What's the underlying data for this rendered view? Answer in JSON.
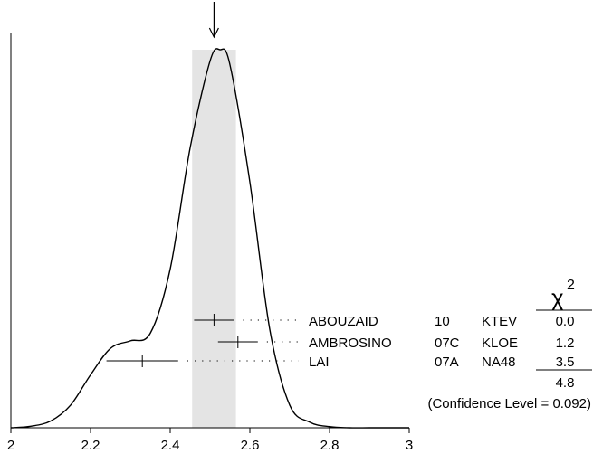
{
  "chart_data": {
    "type": "ideogram",
    "x_axis": {
      "range": [
        2,
        3
      ],
      "ticks": [
        2,
        2.2,
        2.4,
        2.6,
        2.8,
        3
      ],
      "tick_labels": [
        "2",
        "2.2",
        "2.4",
        "2.6",
        "2.8",
        "3"
      ]
    },
    "average": {
      "value": 2.51,
      "error_band": [
        2.455,
        2.565
      ]
    },
    "curve": {
      "x": [
        2.0,
        2.05,
        2.1,
        2.15,
        2.2,
        2.25,
        2.3,
        2.35,
        2.4,
        2.45,
        2.5,
        2.525,
        2.55,
        2.6,
        2.65,
        2.7,
        2.75,
        2.8,
        2.85,
        2.9,
        2.95,
        3.0
      ],
      "y": [
        0.0,
        0.004,
        0.018,
        0.06,
        0.14,
        0.21,
        0.23,
        0.25,
        0.42,
        0.74,
        0.97,
        1.0,
        0.96,
        0.65,
        0.26,
        0.06,
        0.015,
        0.003,
        0.0,
        0.0,
        0.0,
        0.0
      ]
    },
    "chi2_header": {
      "symbol": "χ",
      "exponent": "2"
    },
    "measurements": [
      {
        "author": "ABOUZAID",
        "year": "10",
        "experiment": "KTEV",
        "value": 2.51,
        "error": 0.05,
        "chi2": "0.0"
      },
      {
        "author": "AMBROSINO",
        "year": "07C",
        "experiment": "KLOE",
        "value": 2.57,
        "error": 0.05,
        "chi2": "1.2"
      },
      {
        "author": "LAI",
        "year": "07A",
        "experiment": "NA48",
        "value": 2.33,
        "error": 0.09,
        "chi2": "3.5"
      }
    ],
    "chi2_total": "4.8",
    "confidence_level_text": "(Confidence Level = 0.092)"
  },
  "colors": {
    "band": "#e4e4e4",
    "ink": "#000000"
  }
}
